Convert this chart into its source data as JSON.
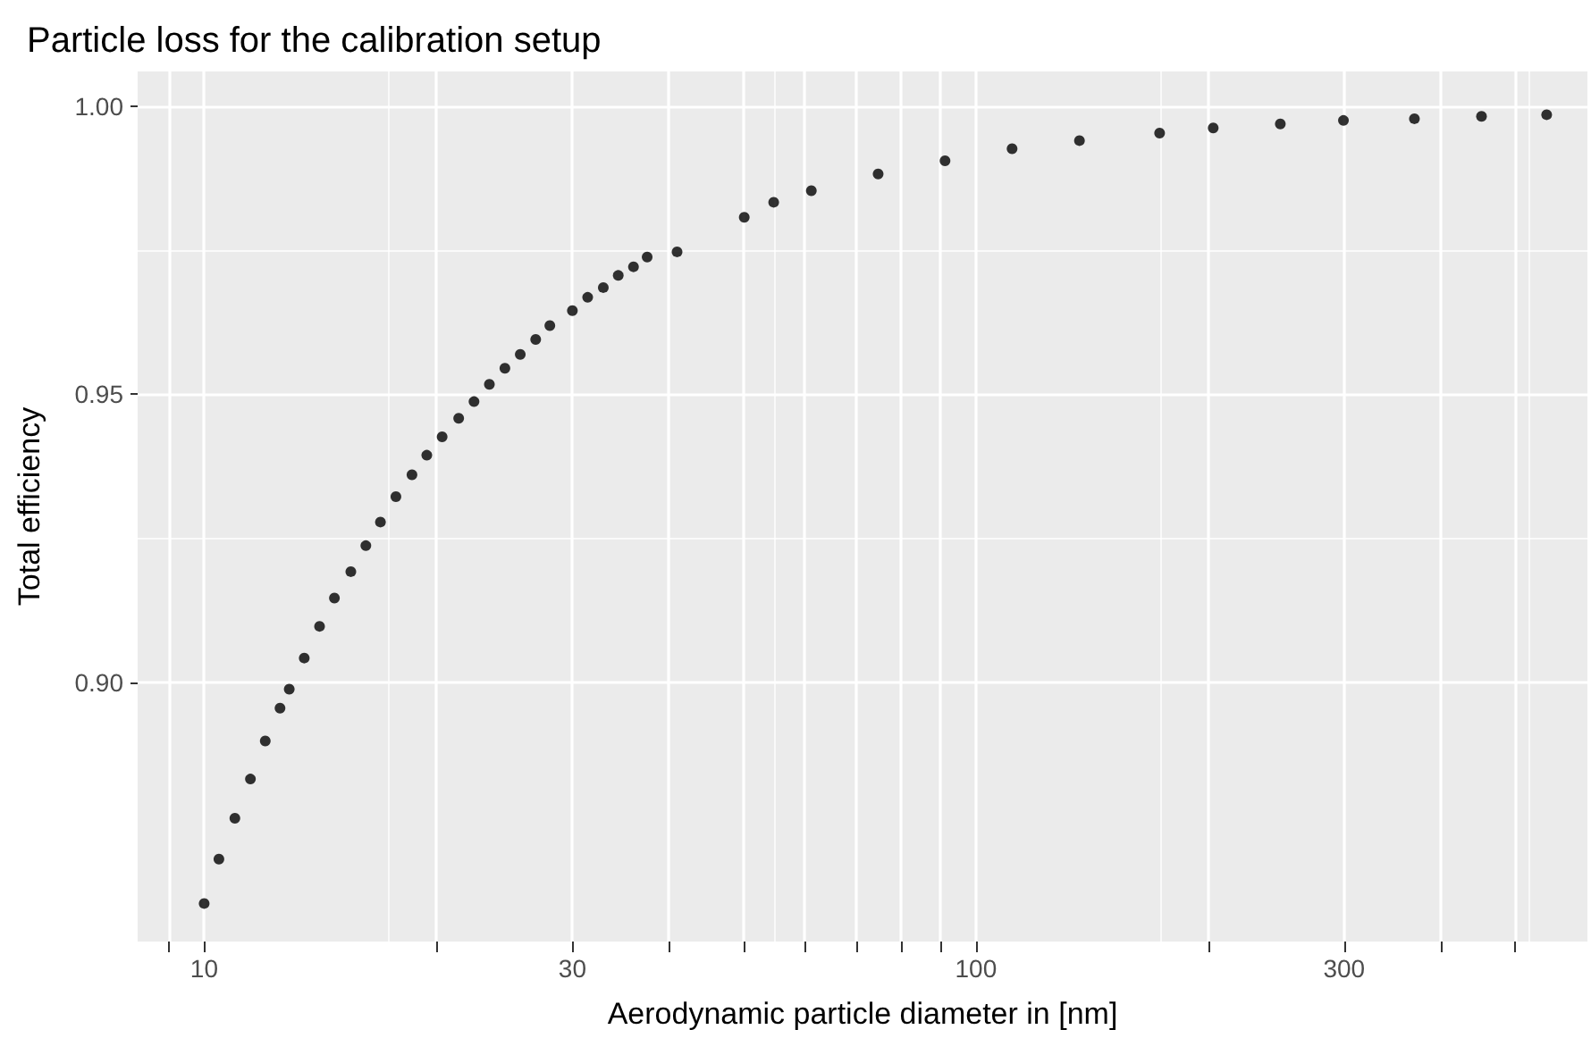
{
  "chart_data": {
    "type": "scatter",
    "title": "Particle loss for the calibration setup",
    "xlabel": "Aerodynamic particle diameter in [nm]",
    "ylabel": "Total efficiency",
    "log": "x",
    "grid": true,
    "marker": "circle",
    "xlim": [
      8.2,
      620
    ],
    "ylim": [
      0.855,
      1.006
    ],
    "xticks": [
      {
        "value": 9,
        "label": null
      },
      10,
      {
        "value": 20,
        "label": null
      },
      30,
      {
        "value": 40,
        "label": null
      },
      {
        "value": 50,
        "label": null
      },
      {
        "value": 60,
        "label": null
      },
      {
        "value": 70,
        "label": null
      },
      {
        "value": 80,
        "label": null
      },
      {
        "value": 90,
        "label": null
      },
      100,
      {
        "value": 200,
        "label": null
      },
      300,
      {
        "value": 400,
        "label": null
      },
      {
        "value": 500,
        "label": null
      }
    ],
    "yticks": [
      {
        "value": 0.9,
        "label": "0.90"
      },
      {
        "value": 0.95,
        "label": "0.95"
      },
      {
        "value": 1,
        "label": "1.00"
      }
    ],
    "series": [
      {
        "color": "#000000",
        "x": [
          10,
          10.45,
          10.96,
          11.48,
          12.0,
          12.54,
          12.89,
          13.48,
          14.11,
          14.75,
          15.49,
          16.2,
          16.92,
          17.72,
          18.59,
          19.43,
          20.34,
          21.37,
          22.37,
          23.42,
          24.53,
          25.68,
          26.89,
          28.05,
          30.0,
          31.4,
          32.9,
          34.4,
          36.0,
          37.5,
          41.0,
          50.1,
          54.7,
          61.2,
          74.7,
          91.2,
          111.4,
          136.2,
          173,
          203,
          248,
          299.4,
          370,
          452,
          549
        ],
        "values": [
          0.8616,
          0.8693,
          0.8764,
          0.8832,
          0.8898,
          0.8955,
          0.8988,
          0.9042,
          0.9097,
          0.9146,
          0.9192,
          0.9237,
          0.9278,
          0.9322,
          0.936,
          0.9394,
          0.9426,
          0.9458,
          0.9487,
          0.9517,
          0.9545,
          0.9569,
          0.9595,
          0.9619,
          0.9645,
          0.9668,
          0.9685,
          0.9706,
          0.9721,
          0.9738,
          0.9747,
          0.9807,
          0.9833,
          0.9853,
          0.9882,
          0.9905,
          0.9926,
          0.994,
          0.9953,
          0.9962,
          0.9969,
          0.9975,
          0.9978,
          0.9982,
          0.9985
        ]
      }
    ]
  }
}
